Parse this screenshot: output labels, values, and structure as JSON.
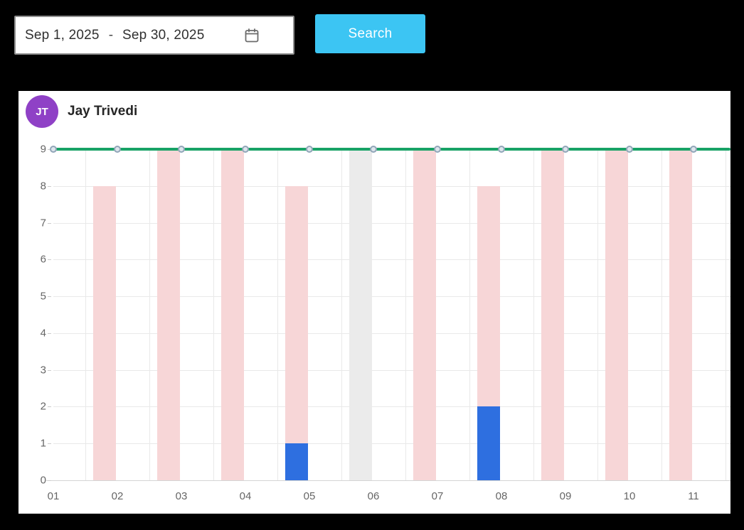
{
  "toolbar": {
    "date_range": {
      "start": "Sep 1, 2025",
      "separator": "-",
      "end": "Sep 30, 2025"
    },
    "search_label": "Search",
    "search_button_color": "#3cc5f3"
  },
  "card": {
    "user": {
      "initials": "JT",
      "name": "Jay Trivedi",
      "avatar_color": "#8f41c6"
    }
  },
  "chart_data": {
    "type": "bar",
    "title": "",
    "categories": [
      "01",
      "02",
      "03",
      "04",
      "05",
      "06",
      "07",
      "08",
      "09",
      "10",
      "11"
    ],
    "series": [
      {
        "name": "blue-bars",
        "type": "bar",
        "stack": true,
        "color": "#2e6fe0",
        "values": [
          0,
          0,
          0,
          0,
          1,
          0,
          0,
          2,
          0,
          0,
          0
        ]
      },
      {
        "name": "pink-bars",
        "type": "bar",
        "stack": true,
        "color": "#f7d6d7",
        "values": [
          0,
          8,
          9,
          9,
          7,
          0,
          9,
          6,
          9,
          9,
          9
        ]
      },
      {
        "name": "gray-bars",
        "type": "bar",
        "stack": true,
        "color": "#ebebeb",
        "values": [
          0,
          0,
          0,
          0,
          0,
          9,
          0,
          0,
          0,
          0,
          0
        ]
      },
      {
        "name": "green-line",
        "type": "line",
        "color": "#18a266",
        "values": [
          9,
          9,
          9,
          9,
          9,
          9,
          9,
          9,
          9,
          9,
          9
        ],
        "marker": {
          "fill": "#dde5ec",
          "stroke": "#91a5b8"
        }
      }
    ],
    "stack_totals": [
      0,
      8,
      9,
      9,
      8,
      9,
      9,
      8,
      9,
      9,
      9
    ],
    "xlabel": "",
    "ylabel": "",
    "ylim": [
      0,
      9
    ],
    "yticks": [
      0,
      1,
      2,
      3,
      4,
      5,
      6,
      7,
      8,
      9
    ],
    "grid": true,
    "legend": "none"
  }
}
